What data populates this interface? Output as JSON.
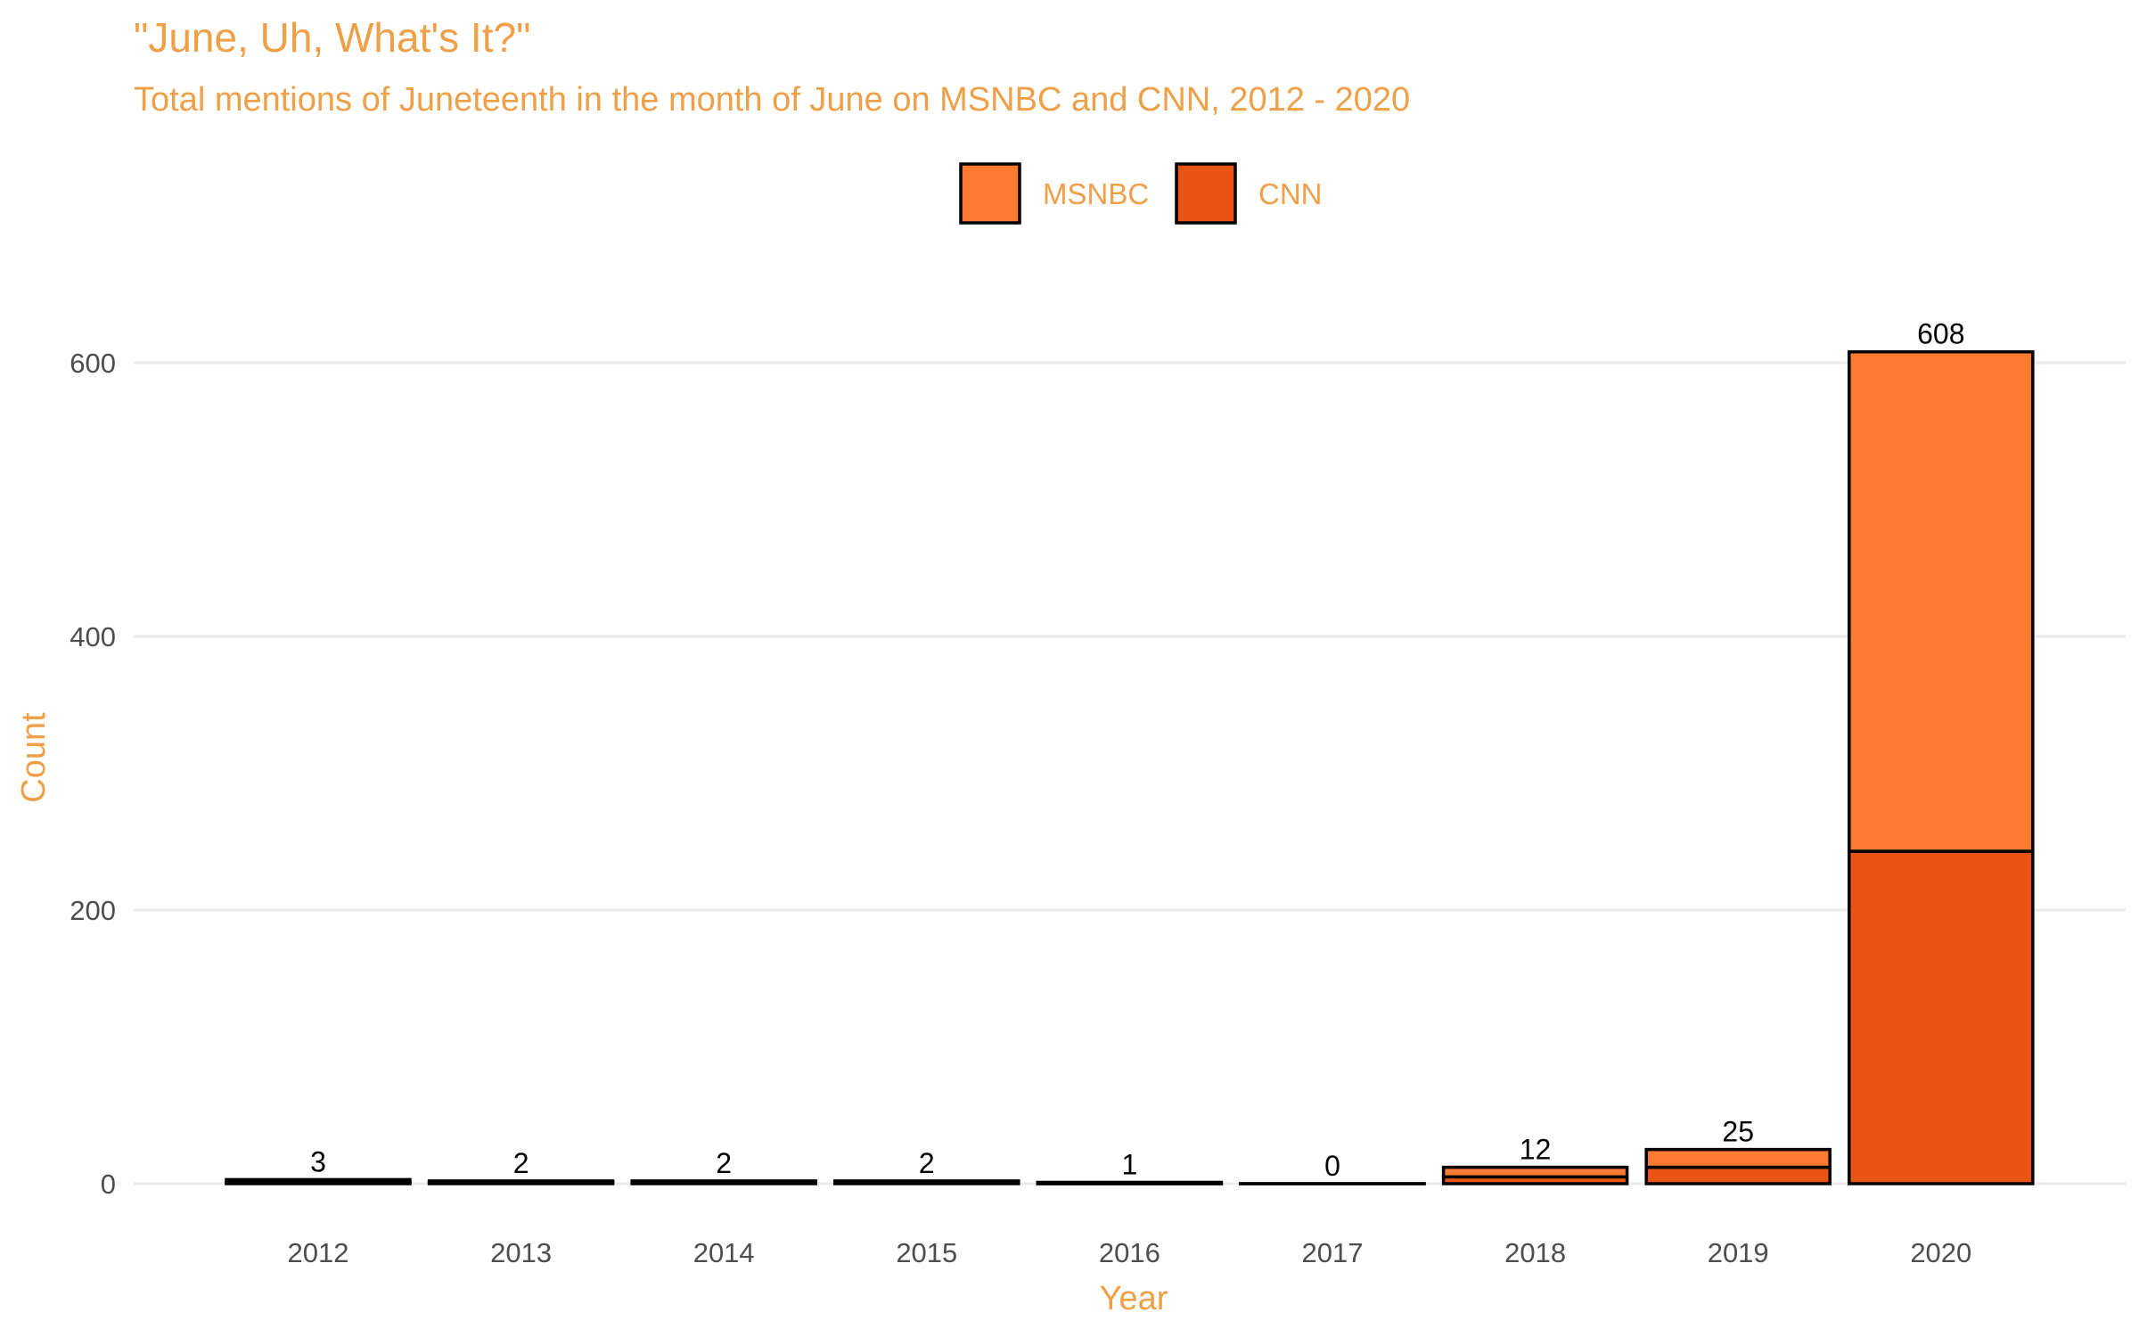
{
  "chart_data": {
    "type": "bar",
    "stacked": true,
    "title": "\"June, Uh, What's It?\"",
    "subtitle": "Total mentions of Juneteenth in the month of June on MSNBC and CNN, 2012 - 2020",
    "xlabel": "Year",
    "ylabel": "Count",
    "ylim": [
      0,
      608
    ],
    "yticks": [
      0,
      200,
      400,
      600
    ],
    "grid": true,
    "legend_position": "top",
    "categories": [
      "2012",
      "2013",
      "2014",
      "2015",
      "2016",
      "2017",
      "2018",
      "2019",
      "2020"
    ],
    "totals": [
      3,
      2,
      2,
      2,
      1,
      0,
      12,
      25,
      608
    ],
    "series": [
      {
        "name": "CNN",
        "color": "#E95413",
        "values": [
          1,
          1,
          1,
          1,
          0,
          0,
          5,
          12,
          243
        ]
      },
      {
        "name": "MSNBC",
        "color": "#FC7B31",
        "values": [
          2,
          1,
          1,
          1,
          1,
          0,
          7,
          13,
          365
        ]
      }
    ],
    "legend": [
      {
        "name": "MSNBC",
        "color": "#FC7B31"
      },
      {
        "name": "CNN",
        "color": "#E95413"
      }
    ]
  }
}
